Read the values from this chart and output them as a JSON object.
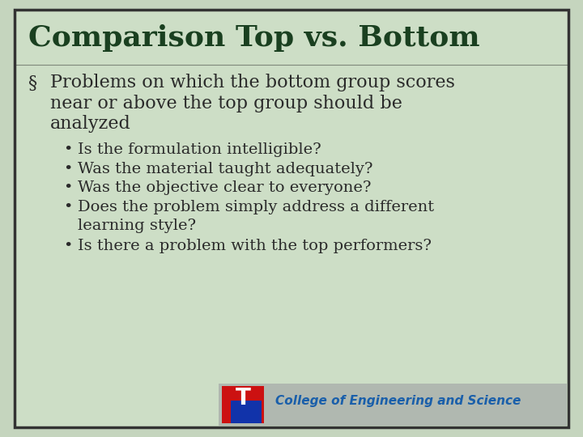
{
  "title": "Comparison Top vs. Bottom",
  "title_color": "#1a4020",
  "title_fontsize": 26,
  "background_color_outer": "#c5d5be",
  "background_color_inner": "#cddec6",
  "border_color": "#333333",
  "section_bullet": "§",
  "section_text_line1": "Problems on which the bottom group scores",
  "section_text_line2": "near or above the top group should be",
  "section_text_line3": "analyzed",
  "section_color": "#2a2a2a",
  "section_fontsize": 16,
  "bullet_items": [
    "Is the formulation intelligible?",
    "Was the material taught adequately?",
    "Was the objective clear to everyone?",
    "Does the problem simply address a different\nlearning style?",
    "Is there a problem with the top performers?"
  ],
  "bullet_color": "#2a2a2a",
  "bullet_fontsize": 14,
  "footer_bg": "#b0b8b0",
  "footer_text": "College of Engineering and Science",
  "footer_text_color": "#1a5faa",
  "footer_fontsize": 11,
  "logo_red": "#cc1111",
  "logo_blue": "#1133aa"
}
